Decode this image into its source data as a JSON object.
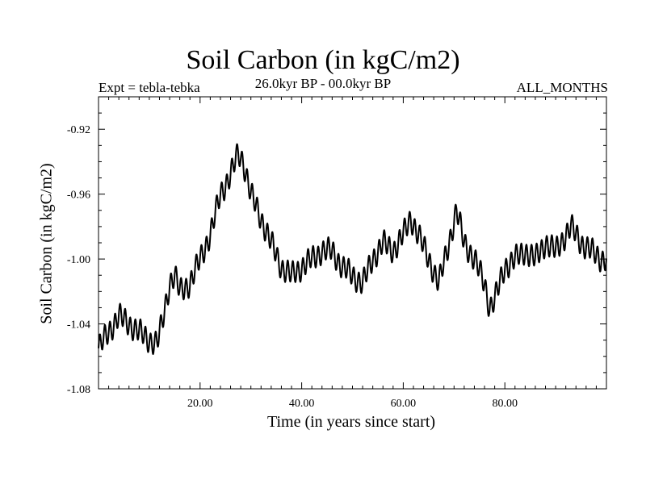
{
  "chart_data": {
    "type": "line",
    "title": "Soil Carbon (in kgC/m2)",
    "expt_label": "Expt = tebla-tebka",
    "subtitle": "26.0kyr BP - 00.0kyr BP",
    "months_label": "ALL_MONTHS",
    "xlabel": "Time (in years since start)",
    "ylabel": "Soil Carbon (in kgC/m2)",
    "xlim": [
      0,
      100
    ],
    "ylim": [
      -1.08,
      -0.9
    ],
    "x_ticks": [
      20,
      40,
      60,
      80
    ],
    "x_tick_labels": [
      "20.00",
      "40.00",
      "60.00",
      "80.00"
    ],
    "y_ticks": [
      -1.08,
      -1.04,
      -1.0,
      -0.96,
      -0.92
    ],
    "y_tick_labels": [
      "-1.08",
      "-1.04",
      "-1.00",
      "-0.96",
      "-0.92"
    ],
    "series": [
      {
        "name": "Soil Carbon",
        "color": "#000000",
        "x": [
          0,
          2,
          4,
          6,
          8,
          10,
          11.5,
          12.5,
          14,
          15,
          16,
          18,
          20,
          22,
          24,
          26,
          27.5,
          28.5,
          30,
          32,
          34,
          36,
          38,
          40,
          42,
          44,
          46,
          48,
          50,
          52,
          54,
          56,
          58,
          60,
          61.5,
          63,
          65,
          67,
          69,
          70.5,
          72,
          74,
          76,
          77,
          78,
          80,
          82,
          84,
          86,
          88,
          90,
          92,
          93,
          95,
          97,
          99
        ],
        "values": [
          -1.055,
          -1.045,
          -1.035,
          -1.04,
          -1.045,
          -1.05,
          -1.052,
          -1.04,
          -1.015,
          -1.01,
          -1.02,
          -1.015,
          -1.0,
          -0.985,
          -0.96,
          -0.948,
          -0.935,
          -0.94,
          -0.96,
          -0.975,
          -0.99,
          -1.005,
          -1.01,
          -1.005,
          -1.0,
          -0.995,
          -0.995,
          -1.005,
          -1.01,
          -1.015,
          -1.0,
          -0.99,
          -0.995,
          -0.985,
          -0.975,
          -0.985,
          -1.0,
          -1.015,
          -0.99,
          -0.97,
          -0.99,
          -1.0,
          -1.015,
          -1.03,
          -1.025,
          -1.005,
          -1.0,
          -0.995,
          -1.0,
          -0.99,
          -0.995,
          -0.985,
          -0.98,
          -0.99,
          -0.995,
          -1.0
        ]
      }
    ]
  }
}
